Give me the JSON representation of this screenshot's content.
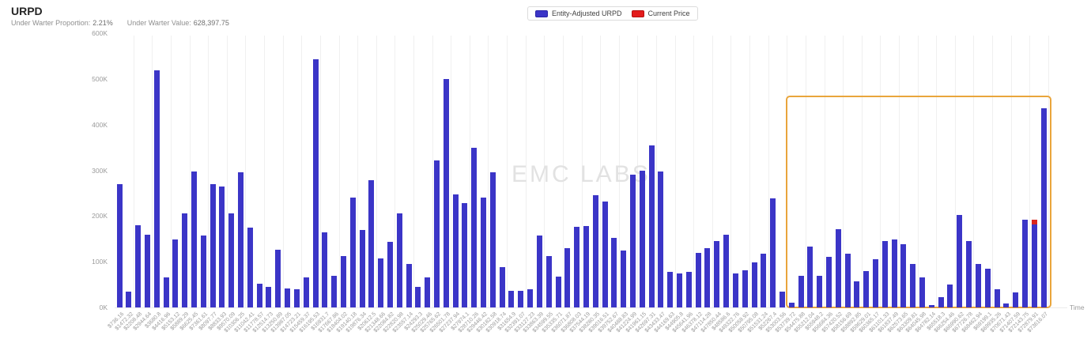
{
  "header": {
    "title": "URPD",
    "stats": [
      {
        "label": "Under Warter Proportion:",
        "value": "2.21%"
      },
      {
        "label": "Under Warter Value:",
        "value": "628,397.75"
      }
    ]
  },
  "legend": {
    "items": [
      {
        "label": "Entity-Adjusted URPD",
        "color": "#3b35c7",
        "border": "#2a25a8"
      },
      {
        "label": "Current Price",
        "color": "#e31b1b",
        "border": "#b51010"
      }
    ]
  },
  "watermark": "EMC LABS",
  "chart_data": {
    "type": "bar",
    "title": "URPD",
    "legend_position": "top-center",
    "grid": "vertical-only",
    "x_axis": {
      "name": "Time",
      "tick_prefix": "$",
      "bin_step": 736.16,
      "tick_labels": [
        "$736.16",
        "$1472.32",
        "$2208.48",
        "$2944.64",
        "$3680.8",
        "$4416.96",
        "$5153.12",
        "$5889.29",
        "$6625.45",
        "$7361.61",
        "$8097.77",
        "$8833.93",
        "$9570.09",
        "$10306.25",
        "$11042.41",
        "$11778.57",
        "$12514.73",
        "$13250.89",
        "$13987.05",
        "$14723.21",
        "$15459.37",
        "$16195.53",
        "$16931.7",
        "$17667.86",
        "$18404.02",
        "$19140.18",
        "$19876.34",
        "$20612.5",
        "$21348.66",
        "$22084.82",
        "$22820.98",
        "$23557.14",
        "$24293.3",
        "$25029.46",
        "$25765.62",
        "$26501.78",
        "$27237.94",
        "$27974.1",
        "$28710.26",
        "$29446.42",
        "$30182.58",
        "$30918.74",
        "$31654.9",
        "$32391.07",
        "$33127.23",
        "$33863.39",
        "$34599.55",
        "$35335.71",
        "$36071.87",
        "$36808.03",
        "$37544.19",
        "$38280.35",
        "$39016.51",
        "$39752.67",
        "$40488.83",
        "$41224.99",
        "$41961.15",
        "$42697.31",
        "$43433.47",
        "$44169.63",
        "$44905.8",
        "$45641.96",
        "$46378.12",
        "$47114.28",
        "$47850.44",
        "$48586.6",
        "$49322.76",
        "$50058.92",
        "$50795.08",
        "$51531.24",
        "$52267.4",
        "$53003.56",
        "$53739.72",
        "$54475.88",
        "$55212.04",
        "$55948.2",
        "$56684.36",
        "$57420.52",
        "$58156.69",
        "$58892.85",
        "$59629.01",
        "$60365.17",
        "$61101.33",
        "$61837.49",
        "$62573.65",
        "$63309.81",
        "$64045.98",
        "$64782.14",
        "$65518.3",
        "$66254.46",
        "$66990.62",
        "$67726.78",
        "$68462.94",
        "$69199.1",
        "$69935.26",
        "$70671.43",
        "$71407.59",
        "$72143.75",
        "$72879.91",
        "$73616.07"
      ]
    },
    "y_axis": {
      "tick_labels": [
        "0K",
        "100K",
        "200K",
        "300K",
        "400K",
        "500K",
        "600K"
      ],
      "min_k": 0,
      "max_k": 600
    },
    "series": [
      {
        "name": "Entity-Adjusted URPD",
        "color": "#3b35c7",
        "unit": "thousands",
        "values_k": [
          270,
          35,
          180,
          160,
          518,
          66,
          148,
          205,
          297,
          158,
          270,
          265,
          205,
          295,
          175,
          52,
          45,
          127,
          42,
          40,
          66,
          543,
          165,
          70,
          112,
          240,
          170,
          278,
          108,
          143,
          205,
          95,
          45,
          66,
          322,
          500,
          248,
          229,
          350,
          241,
          295,
          88,
          36,
          36,
          40,
          158,
          112,
          68,
          130,
          176,
          178,
          245,
          232,
          152,
          124,
          290,
          300,
          355,
          297,
          78,
          74,
          78,
          120,
          130,
          145,
          160,
          75,
          82,
          98,
          117,
          238,
          35,
          10,
          70,
          133,
          70,
          110,
          172,
          117,
          58,
          80,
          105,
          145,
          148,
          138,
          95,
          66,
          6,
          22,
          50,
          202,
          145,
          95,
          85,
          40,
          8,
          33,
          192,
          182,
          435
        ]
      },
      {
        "name": "Current Price",
        "color": "#d9251d",
        "marker": {
          "bin": 99,
          "bin_label": "$72879.91",
          "cap_k": 10
        }
      }
    ],
    "highlight_box": {
      "from_bin": 73,
      "to_bin": 100,
      "top_value_k": 463,
      "color": "#e9a53c"
    }
  }
}
